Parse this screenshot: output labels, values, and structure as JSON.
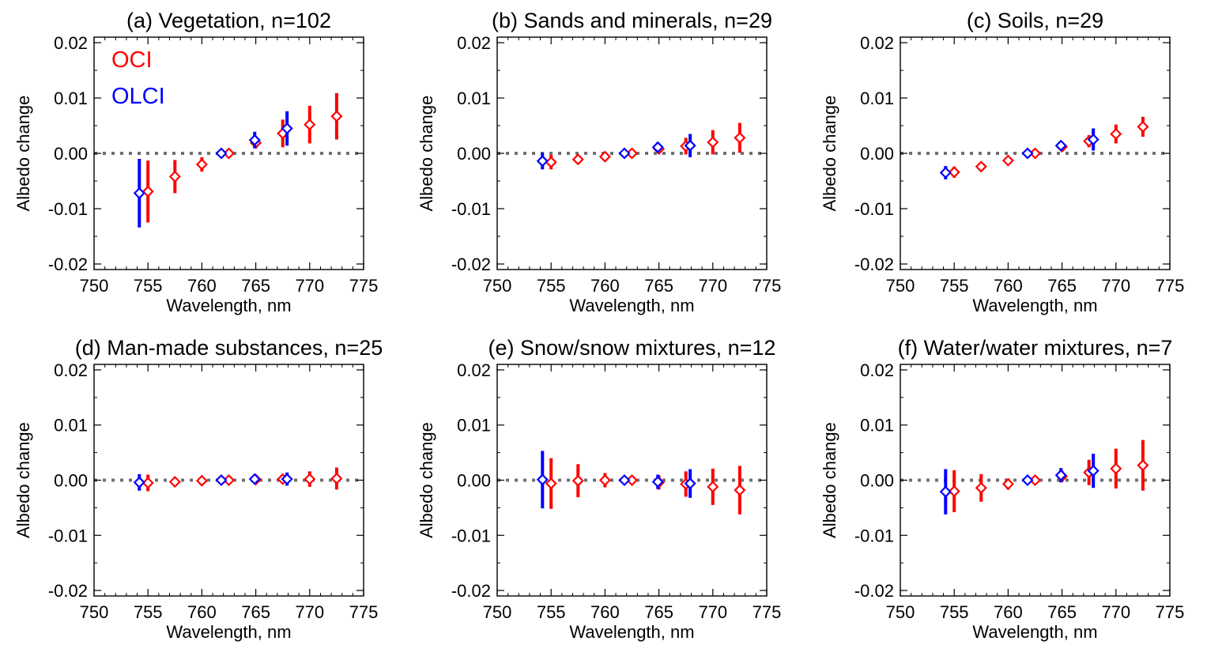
{
  "figure": {
    "legend": [
      {
        "label": "OCI",
        "color": "#ff0000"
      },
      {
        "label": "OLCI",
        "color": "#0000ff"
      }
    ]
  },
  "colors": {
    "oci": "#ff0000",
    "olci": "#0000ff",
    "zero_line": "#707070",
    "axes": "#000000"
  },
  "chart_data": [
    {
      "type": "scatter",
      "title": "(a) Vegetation, n=102",
      "xlabel": "Wavelength, nm",
      "ylabel": "Albedo change",
      "xlim": [
        750,
        775
      ],
      "ylim": [
        -0.021,
        0.021
      ],
      "xticks": [
        750,
        755,
        760,
        765,
        770,
        775
      ],
      "yticks": [
        -0.02,
        -0.01,
        0.0,
        0.01,
        0.02
      ],
      "ytick_labels": [
        "-0.02",
        "-0.01",
        "0.00",
        "0.01",
        "0.02"
      ],
      "show_legend": true,
      "series": [
        {
          "name": "OCI",
          "color": "#ff0000",
          "points": [
            {
              "x": 755.0,
              "y": -0.0069,
              "err": 0.0056
            },
            {
              "x": 757.5,
              "y": -0.0042,
              "err": 0.003
            },
            {
              "x": 760.0,
              "y": -0.002,
              "err": 0.0013
            },
            {
              "x": 762.5,
              "y": 0.0,
              "err": 0.0003
            },
            {
              "x": 765.0,
              "y": 0.0019,
              "err": 0.001
            },
            {
              "x": 767.5,
              "y": 0.0036,
              "err": 0.0025
            },
            {
              "x": 770.0,
              "y": 0.0052,
              "err": 0.0034
            },
            {
              "x": 772.5,
              "y": 0.0067,
              "err": 0.0042
            }
          ]
        },
        {
          "name": "OLCI",
          "color": "#0000ff",
          "points": [
            {
              "x": 754.2,
              "y": -0.0072,
              "err": 0.0062
            },
            {
              "x": 761.8,
              "y": 0.0,
              "err": 0.0003
            },
            {
              "x": 764.9,
              "y": 0.0024,
              "err": 0.0015
            },
            {
              "x": 767.9,
              "y": 0.0045,
              "err": 0.0031
            }
          ]
        }
      ]
    },
    {
      "type": "scatter",
      "title": "(b) Sands and minerals, n=29",
      "xlabel": "Wavelength, nm",
      "ylabel": "Albedo change",
      "xlim": [
        750,
        775
      ],
      "ylim": [
        -0.021,
        0.021
      ],
      "xticks": [
        750,
        755,
        760,
        765,
        770,
        775
      ],
      "yticks": [
        -0.02,
        -0.01,
        0.0,
        0.01,
        0.02
      ],
      "ytick_labels": [
        "-0.02",
        "-0.01",
        "0.00",
        "0.01",
        "0.02"
      ],
      "show_legend": false,
      "series": [
        {
          "name": "OCI",
          "color": "#ff0000",
          "points": [
            {
              "x": 755.0,
              "y": -0.0016,
              "err": 0.0013
            },
            {
              "x": 757.5,
              "y": -0.0011,
              "err": 0.0008
            },
            {
              "x": 760.0,
              "y": -0.0006,
              "err": 0.0004
            },
            {
              "x": 762.5,
              "y": 0.0,
              "err": 0.0002
            },
            {
              "x": 765.0,
              "y": 0.0008,
              "err": 0.0006
            },
            {
              "x": 767.5,
              "y": 0.0013,
              "err": 0.0015
            },
            {
              "x": 770.0,
              "y": 0.002,
              "err": 0.0022
            },
            {
              "x": 772.5,
              "y": 0.0028,
              "err": 0.0027
            }
          ]
        },
        {
          "name": "OLCI",
          "color": "#0000ff",
          "points": [
            {
              "x": 754.2,
              "y": -0.0014,
              "err": 0.0015
            },
            {
              "x": 761.8,
              "y": 0.0,
              "err": 0.0002
            },
            {
              "x": 764.9,
              "y": 0.0011,
              "err": 0.0009
            },
            {
              "x": 767.9,
              "y": 0.0014,
              "err": 0.0021
            }
          ]
        }
      ]
    },
    {
      "type": "scatter",
      "title": "(c) Soils, n=29",
      "xlabel": "Wavelength, nm",
      "ylabel": "Albedo change",
      "xlim": [
        750,
        775
      ],
      "ylim": [
        -0.021,
        0.021
      ],
      "xticks": [
        750,
        755,
        760,
        765,
        770,
        775
      ],
      "yticks": [
        -0.02,
        -0.01,
        0.0,
        0.01,
        0.02
      ],
      "ytick_labels": [
        "-0.02",
        "-0.01",
        "0.00",
        "0.01",
        "0.02"
      ],
      "show_legend": false,
      "series": [
        {
          "name": "OCI",
          "color": "#ff0000",
          "points": [
            {
              "x": 755.0,
              "y": -0.0034,
              "err": 0.001
            },
            {
              "x": 757.5,
              "y": -0.0024,
              "err": 0.0007
            },
            {
              "x": 760.0,
              "y": -0.0013,
              "err": 0.0005
            },
            {
              "x": 762.5,
              "y": 0.0,
              "err": 0.0002
            },
            {
              "x": 765.0,
              "y": 0.0012,
              "err": 0.0005
            },
            {
              "x": 767.5,
              "y": 0.0022,
              "err": 0.0011
            },
            {
              "x": 770.0,
              "y": 0.0035,
              "err": 0.0017
            },
            {
              "x": 772.5,
              "y": 0.0048,
              "err": 0.0018
            }
          ]
        },
        {
          "name": "OLCI",
          "color": "#0000ff",
          "points": [
            {
              "x": 754.2,
              "y": -0.0035,
              "err": 0.0012
            },
            {
              "x": 761.8,
              "y": 0.0,
              "err": 0.0002
            },
            {
              "x": 764.9,
              "y": 0.0014,
              "err": 0.0008
            },
            {
              "x": 767.9,
              "y": 0.0025,
              "err": 0.002
            }
          ]
        }
      ]
    },
    {
      "type": "scatter",
      "title": "(d) Man-made substances, n=25",
      "xlabel": "Wavelength, nm",
      "ylabel": "Albedo change",
      "xlim": [
        750,
        775
      ],
      "ylim": [
        -0.021,
        0.021
      ],
      "xticks": [
        750,
        755,
        760,
        765,
        770,
        775
      ],
      "yticks": [
        -0.02,
        -0.01,
        0.0,
        0.01,
        0.02
      ],
      "ytick_labels": [
        "-0.02",
        "-0.01",
        "0.00",
        "0.01",
        "0.02"
      ],
      "show_legend": false,
      "series": [
        {
          "name": "OCI",
          "color": "#ff0000",
          "points": [
            {
              "x": 755.0,
              "y": -0.0005,
              "err": 0.0015
            },
            {
              "x": 757.5,
              "y": -0.0003,
              "err": 0.0004
            },
            {
              "x": 760.0,
              "y": -0.0001,
              "err": 0.0003
            },
            {
              "x": 762.5,
              "y": 0.0,
              "err": 0.0002
            },
            {
              "x": 765.0,
              "y": 0.0001,
              "err": 0.0004
            },
            {
              "x": 767.5,
              "y": 0.0002,
              "err": 0.0006
            },
            {
              "x": 770.0,
              "y": 0.0002,
              "err": 0.0014
            },
            {
              "x": 772.5,
              "y": 0.0003,
              "err": 0.002
            }
          ]
        },
        {
          "name": "OLCI",
          "color": "#0000ff",
          "points": [
            {
              "x": 754.2,
              "y": -0.0004,
              "err": 0.0015
            },
            {
              "x": 761.8,
              "y": 0.0,
              "err": 0.0002
            },
            {
              "x": 764.9,
              "y": 0.0002,
              "err": 0.0006
            },
            {
              "x": 767.9,
              "y": 0.0002,
              "err": 0.0012
            }
          ]
        }
      ]
    },
    {
      "type": "scatter",
      "title": "(e) Snow/snow mixtures, n=12",
      "xlabel": "Wavelength, nm",
      "ylabel": "Albedo change",
      "xlim": [
        750,
        775
      ],
      "ylim": [
        -0.021,
        0.021
      ],
      "xticks": [
        750,
        755,
        760,
        765,
        770,
        775
      ],
      "yticks": [
        -0.02,
        -0.01,
        0.0,
        0.01,
        0.02
      ],
      "ytick_labels": [
        "-0.02",
        "-0.01",
        "0.00",
        "0.01",
        "0.02"
      ],
      "show_legend": false,
      "series": [
        {
          "name": "OCI",
          "color": "#ff0000",
          "points": [
            {
              "x": 755.0,
              "y": -0.0006,
              "err": 0.0046
            },
            {
              "x": 757.5,
              "y": -0.0001,
              "err": 0.003
            },
            {
              "x": 760.0,
              "y": 0.0,
              "err": 0.0013
            },
            {
              "x": 762.5,
              "y": 0.0,
              "err": 0.0002
            },
            {
              "x": 765.0,
              "y": -0.0004,
              "err": 0.0013
            },
            {
              "x": 767.5,
              "y": -0.0007,
              "err": 0.0023
            },
            {
              "x": 770.0,
              "y": -0.0012,
              "err": 0.0033
            },
            {
              "x": 772.5,
              "y": -0.0018,
              "err": 0.0044
            }
          ]
        },
        {
          "name": "OLCI",
          "color": "#0000ff",
          "points": [
            {
              "x": 754.2,
              "y": 0.0001,
              "err": 0.0052
            },
            {
              "x": 761.8,
              "y": 0.0,
              "err": 0.0002
            },
            {
              "x": 764.9,
              "y": -0.0003,
              "err": 0.0013
            },
            {
              "x": 767.9,
              "y": -0.0006,
              "err": 0.0026
            }
          ]
        }
      ]
    },
    {
      "type": "scatter",
      "title": "(f) Water/water mixtures, n=7",
      "xlabel": "Wavelength, nm",
      "ylabel": "Albedo change",
      "xlim": [
        750,
        775
      ],
      "ylim": [
        -0.021,
        0.021
      ],
      "xticks": [
        750,
        755,
        760,
        765,
        770,
        775
      ],
      "yticks": [
        -0.02,
        -0.01,
        0.0,
        0.01,
        0.02
      ],
      "ytick_labels": [
        "-0.02",
        "-0.01",
        "0.00",
        "0.01",
        "0.02"
      ],
      "show_legend": false,
      "series": [
        {
          "name": "OCI",
          "color": "#ff0000",
          "points": [
            {
              "x": 755.0,
              "y": -0.002,
              "err": 0.0038
            },
            {
              "x": 757.5,
              "y": -0.0014,
              "err": 0.0025
            },
            {
              "x": 760.0,
              "y": -0.0007,
              "err": 0.001
            },
            {
              "x": 762.5,
              "y": 0.0,
              "err": 0.0002
            },
            {
              "x": 765.0,
              "y": 0.0007,
              "err": 0.001
            },
            {
              "x": 767.5,
              "y": 0.0014,
              "err": 0.0023
            },
            {
              "x": 770.0,
              "y": 0.0021,
              "err": 0.0036
            },
            {
              "x": 772.5,
              "y": 0.0027,
              "err": 0.0046
            }
          ]
        },
        {
          "name": "OLCI",
          "color": "#0000ff",
          "points": [
            {
              "x": 754.2,
              "y": -0.0021,
              "err": 0.0041
            },
            {
              "x": 761.8,
              "y": 0.0,
              "err": 0.0002
            },
            {
              "x": 764.9,
              "y": 0.0009,
              "err": 0.0013
            },
            {
              "x": 767.9,
              "y": 0.0017,
              "err": 0.0031
            }
          ]
        }
      ]
    }
  ]
}
